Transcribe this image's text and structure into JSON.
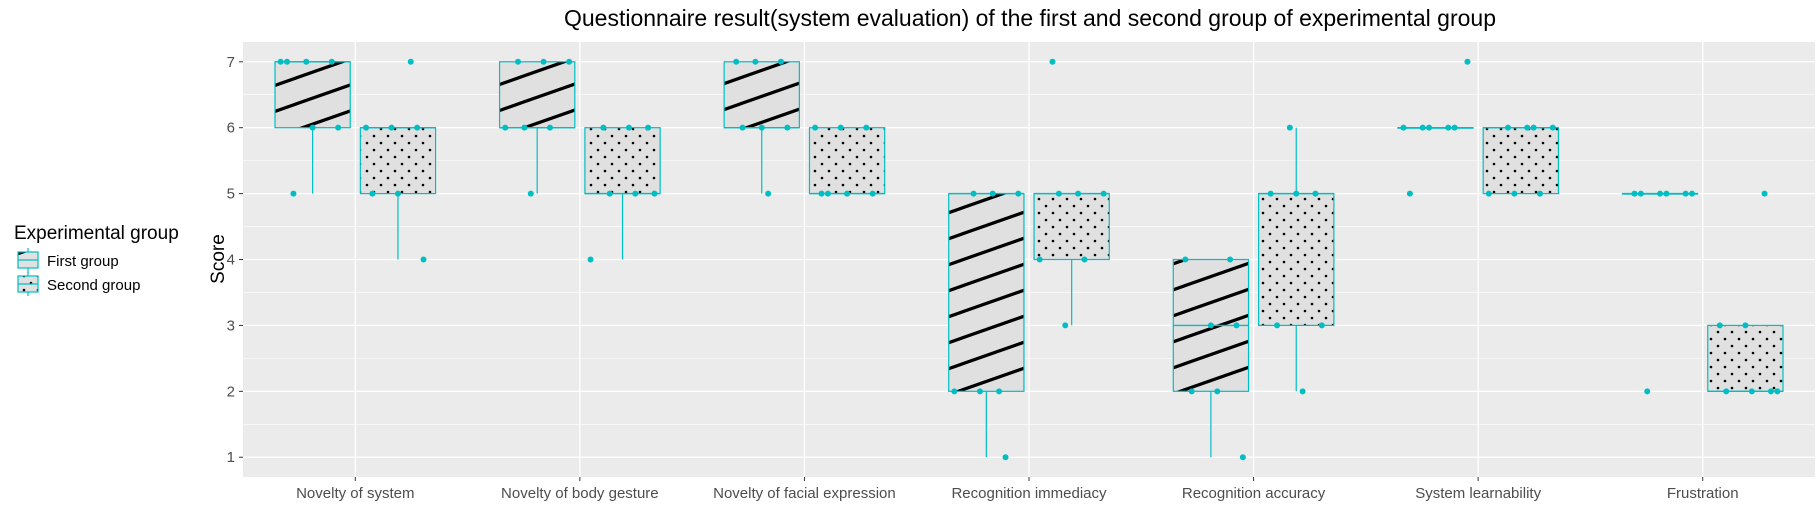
{
  "chart_data": {
    "type": "box",
    "title": "Questionnaire result(system evaluation) of the first and second group of experimental group",
    "xlabel": "",
    "ylabel": "Score",
    "ylim": [
      0.7,
      7.3
    ],
    "yticks": [
      1,
      2,
      3,
      4,
      5,
      6,
      7
    ],
    "categories": [
      "Novelty of system",
      "Novelty of body gesture",
      "Novelty of facial expression",
      "Recognition immediacy",
      "Recognition accuracy",
      "System learnability",
      "Frustration"
    ],
    "legend": {
      "title": "Experimental group",
      "position": "left"
    },
    "colors": {
      "panel": "#ebebeb",
      "grid": "#ffffff",
      "box_outline": "#00bfc4",
      "points": "#00bfc4",
      "pattern": "#000000",
      "box_fill": "#e0e0e0"
    },
    "series": [
      {
        "name": "First group",
        "pattern": "stripe",
        "boxes": [
          {
            "lower": 5,
            "q1": 6,
            "median": 7,
            "q3": 7,
            "upper": 7,
            "points": [
              7,
              7,
              7,
              7,
              6,
              6,
              5
            ]
          },
          {
            "lower": 5,
            "q1": 6,
            "median": 6,
            "q3": 7,
            "upper": 7,
            "points": [
              7,
              7,
              7,
              6,
              6,
              6,
              5
            ]
          },
          {
            "lower": 5,
            "q1": 6,
            "median": 6,
            "q3": 7,
            "upper": 7,
            "points": [
              7,
              7,
              7,
              6,
              6,
              6,
              5
            ]
          },
          {
            "lower": 1,
            "q1": 2,
            "median": 5,
            "q3": 5,
            "upper": 5,
            "points": [
              5,
              5,
              5,
              2,
              2,
              2,
              1
            ]
          },
          {
            "lower": 1,
            "q1": 2,
            "median": 3,
            "q3": 4,
            "upper": 4,
            "points": [
              4,
              4,
              3,
              3,
              2,
              2,
              1
            ]
          },
          {
            "lower": 6,
            "q1": 6,
            "median": 6,
            "q3": 6,
            "upper": 6,
            "points": [
              7,
              6,
              6,
              6,
              6,
              6,
              5
            ]
          },
          {
            "lower": 5,
            "q1": 5,
            "median": 5,
            "q3": 5,
            "upper": 5,
            "points": [
              5,
              5,
              5,
              5,
              5,
              5,
              2
            ]
          }
        ]
      },
      {
        "name": "Second group",
        "pattern": "dots",
        "boxes": [
          {
            "lower": 4,
            "q1": 5,
            "median": 6,
            "q3": 6,
            "upper": 6,
            "points": [
              7,
              6,
              6,
              6,
              5,
              5,
              4
            ]
          },
          {
            "lower": 4,
            "q1": 5,
            "median": 5,
            "q3": 6,
            "upper": 6,
            "points": [
              6,
              6,
              6,
              5,
              5,
              5,
              4
            ]
          },
          {
            "lower": 5,
            "q1": 5,
            "median": 5,
            "q3": 6,
            "upper": 6,
            "points": [
              6,
              6,
              6,
              5,
              5,
              5,
              5
            ]
          },
          {
            "lower": 3,
            "q1": 4,
            "median": 5,
            "q3": 5,
            "upper": 5,
            "points": [
              7,
              5,
              5,
              5,
              4,
              4,
              3
            ]
          },
          {
            "lower": 2,
            "q1": 3,
            "median": 5,
            "q3": 5,
            "upper": 6,
            "points": [
              6,
              5,
              5,
              5,
              3,
              3,
              2
            ]
          },
          {
            "lower": 5,
            "q1": 5,
            "median": 6,
            "q3": 6,
            "upper": 6,
            "points": [
              6,
              6,
              6,
              6,
              5,
              5,
              5
            ]
          },
          {
            "lower": 2,
            "q1": 2,
            "median": 2,
            "q3": 3,
            "upper": 3,
            "points": [
              5,
              3,
              3,
              2,
              2,
              2,
              2
            ]
          }
        ]
      }
    ]
  }
}
